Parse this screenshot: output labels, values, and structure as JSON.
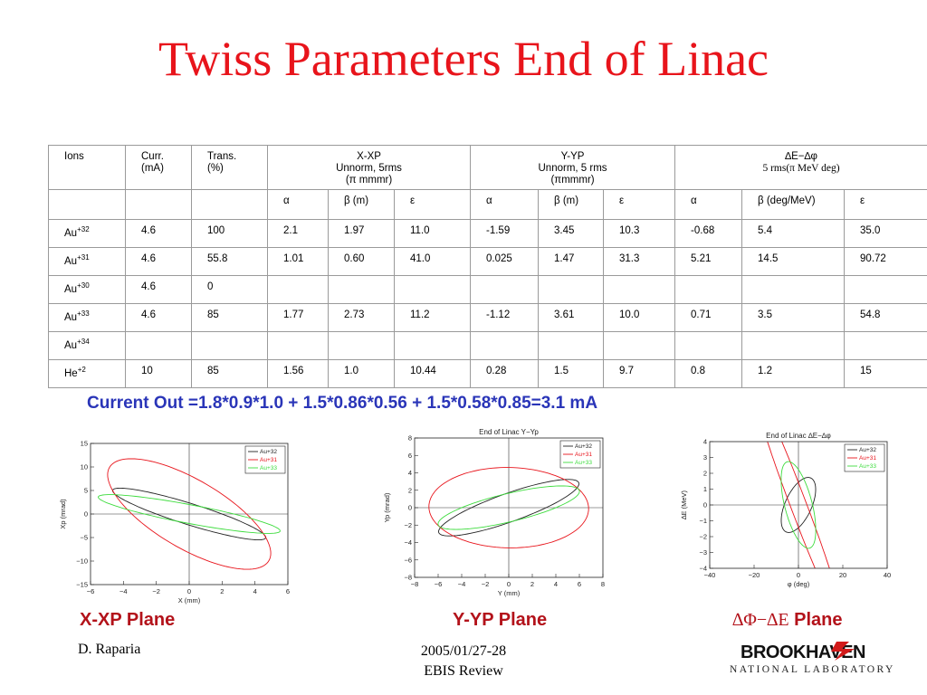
{
  "title": "Twiss Parameters End of Linac",
  "table": {
    "head1": {
      "ions": "Ions",
      "curr_a": "Curr.",
      "curr_b": "(mA)",
      "trans_a": "Trans.",
      "trans_b": "(%)",
      "x_a": "X-XP",
      "x_b": "Unnorm, 5rms",
      "x_c": "(π mmmr)",
      "y_a": "Y-YP",
      "y_b": "Unnorm, 5 rms",
      "y_c": "(πmmmr)",
      "e_a": "∆E−∆φ",
      "e_b": "5 rms(π MeV deg)"
    },
    "head2": [
      "α",
      "β (m)",
      "ε",
      "α",
      "β (m)",
      "ε",
      "α",
      "β (deg/MeV)",
      "ε"
    ],
    "rows": [
      {
        "ion": "Au",
        "charge": "+32",
        "cells": [
          "4.6",
          "100",
          "2.1",
          "1.97",
          "11.0",
          "-1.59",
          "3.45",
          "10.3",
          "-0.68",
          "5.4",
          "35.0"
        ]
      },
      {
        "ion": "Au",
        "charge": "+31",
        "cells": [
          "4.6",
          "55.8",
          "1.01",
          "0.60",
          "41.0",
          "0.025",
          "1.47",
          "31.3",
          "5.21",
          "14.5",
          "90.72"
        ]
      },
      {
        "ion": "Au",
        "charge": "+30",
        "cells": [
          "4.6",
          "0",
          "",
          "",
          "",
          "",
          "",
          "",
          "",
          "",
          ""
        ]
      },
      {
        "ion": "Au",
        "charge": "+33",
        "cells": [
          "4.6",
          "85",
          "1.77",
          "2.73",
          "11.2",
          "-1.12",
          "3.61",
          "10.0",
          "0.71",
          "3.5",
          "54.8"
        ]
      },
      {
        "ion": "Au",
        "charge": "+34",
        "cells": [
          "",
          "",
          "",
          "",
          "",
          "",
          "",
          "",
          "",
          "",
          ""
        ]
      },
      {
        "ion": "He",
        "charge": "+2",
        "cells": [
          "10",
          "85",
          "1.56",
          "1.0",
          "10.44",
          "0.28",
          "1.5",
          "9.7",
          "0.8",
          "1.2",
          "15"
        ]
      }
    ]
  },
  "current_out": "Current Out =1.8*0.9*1.0 + 1.5*0.86*0.56 + 1.5*0.58*0.85=3.1 mA",
  "colors": {
    "title": "#e8141b",
    "current": "#2a35b8",
    "plane": "#b3121a",
    "au32": "#222222",
    "au31": "#e8141b",
    "au33": "#3ddc3d"
  },
  "chart_data": [
    {
      "type": "line",
      "title": "",
      "xlabel": "X (mm)",
      "ylabel": "Xp (mrad)",
      "xlim": [
        -6,
        6
      ],
      "ylim": [
        -15,
        15
      ],
      "xticks": [
        -6,
        -4,
        -2,
        0,
        2,
        4,
        6
      ],
      "yticks": [
        -15,
        -10,
        -5,
        0,
        5,
        10,
        15
      ],
      "legend": "top-right",
      "series": [
        {
          "name": "Au+32",
          "color": "#222222",
          "alpha": 2.1,
          "beta_m": 1.97,
          "emittance": 11.0
        },
        {
          "name": "Au+31",
          "color": "#e8141b",
          "alpha": 1.01,
          "beta_m": 0.6,
          "emittance": 41.0
        },
        {
          "name": "Au+33",
          "color": "#3ddc3d",
          "alpha": 1.77,
          "beta_m": 2.73,
          "emittance": 11.2
        }
      ]
    },
    {
      "type": "line",
      "title": "End of Linac Y−Yp",
      "xlabel": "Y (mm)",
      "ylabel": "Yp (mrad)",
      "xlim": [
        -8,
        8
      ],
      "ylim": [
        -8,
        8
      ],
      "xticks": [
        -8,
        -6,
        -4,
        -2,
        0,
        2,
        4,
        6,
        8
      ],
      "yticks": [
        -8,
        -6,
        -4,
        -2,
        0,
        2,
        4,
        6,
        8
      ],
      "legend": "top-right",
      "series": [
        {
          "name": "Au+32",
          "color": "#222222",
          "alpha": -1.59,
          "beta_m": 3.45,
          "emittance": 10.3
        },
        {
          "name": "Au+31",
          "color": "#e8141b",
          "alpha": 0.025,
          "beta_m": 1.47,
          "emittance": 31.3
        },
        {
          "name": "Au+33",
          "color": "#3ddc3d",
          "alpha": -1.12,
          "beta_m": 3.61,
          "emittance": 10.0
        }
      ]
    },
    {
      "type": "line",
      "title": "End of Linac ∆E−∆φ",
      "xlabel": "φ (deg)",
      "ylabel": "∆E (MeV)",
      "xlim": [
        -40,
        40
      ],
      "ylim": [
        -4,
        4
      ],
      "xticks": [
        -40,
        -20,
        0,
        20,
        40
      ],
      "yticks": [
        -4,
        -3,
        -2,
        -1,
        0,
        1,
        2,
        3,
        4
      ],
      "legend": "top-right",
      "series": [
        {
          "name": "Au+32",
          "color": "#222222",
          "alpha": -0.68,
          "beta_deg_per_mev": 5.4,
          "emittance": 35.0
        },
        {
          "name": "Au+31",
          "color": "#e8141b",
          "alpha": 5.21,
          "beta_deg_per_mev": 14.5,
          "emittance": 90.72
        },
        {
          "name": "Au+33",
          "color": "#3ddc3d",
          "alpha": 0.71,
          "beta_deg_per_mev": 3.5,
          "emittance": 54.8
        }
      ]
    }
  ],
  "legend_labels": {
    "au32_ion": "Au",
    "au32_q": "+32",
    "au31_ion": "Au",
    "au31_q": "+31",
    "au33_ion": "Au",
    "au33_q": "+33"
  },
  "planes": {
    "x": "X-XP Plane",
    "y": "Y-YP Plane",
    "e_sym": "∆Φ−∆E",
    "e_word": "Plane"
  },
  "footer": {
    "author": "D. Raparia",
    "date": "2005/01/27-28",
    "event": "EBIS Review"
  },
  "logo": {
    "name": "BROOKHAVEN",
    "sub": "NATIONAL LABORATORY"
  }
}
